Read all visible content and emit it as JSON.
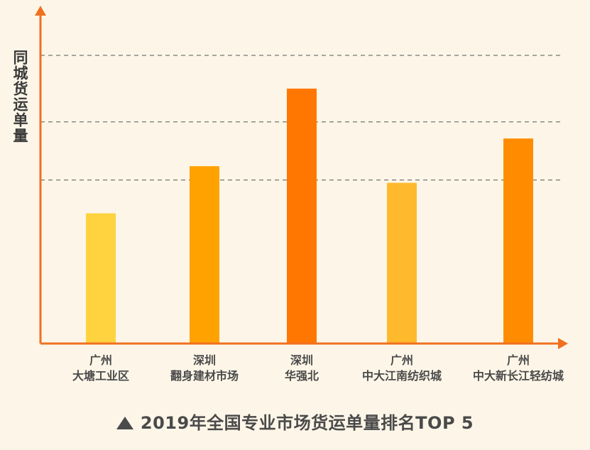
{
  "chart_data": {
    "type": "bar",
    "ylabel": "同城货运单量",
    "xlabel": "",
    "caption": "2019年全国专业市场货运单量排名TOP 5",
    "categories": [
      {
        "city": "广州",
        "market": "大塘工业区"
      },
      {
        "city": "深圳",
        "market": "翻身建材市场"
      },
      {
        "city": "深圳",
        "market": "华强北"
      },
      {
        "city": "广州",
        "market": "中大江南纺织城"
      },
      {
        "city": "广州",
        "market": "中大新长江轻纺城"
      }
    ],
    "values": [
      47,
      64,
      92,
      58,
      74
    ],
    "ylim": [
      0,
      104
    ],
    "gridlines": [
      59,
      80,
      104
    ],
    "y_ticks_shown": false,
    "colors": [
      "#ffd23f",
      "#ffa200",
      "#ff7700",
      "#ffb92c",
      "#ff8c00"
    ],
    "axis_color": "#f07020",
    "grid": true,
    "legend": "none"
  }
}
